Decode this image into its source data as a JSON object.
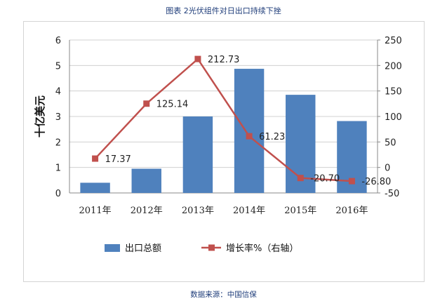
{
  "title": "图表 2光伏组件对日出口持续下挫",
  "source": "数据来源：中国信保",
  "chart_data": {
    "type": "bar",
    "categories": [
      "2011年",
      "2012年",
      "2013年",
      "2014年",
      "2015年",
      "2016年"
    ],
    "series": [
      {
        "name": "出口总额",
        "type": "bar",
        "axis": "left",
        "color": "#4f81bd",
        "values": [
          0.4,
          0.95,
          3.0,
          4.87,
          3.85,
          2.82
        ]
      },
      {
        "name": "增长率%（右轴）",
        "type": "line",
        "axis": "right",
        "color": "#c0504d",
        "values": [
          17.37,
          125.14,
          212.73,
          61.23,
          -20.7,
          -26.8
        ]
      }
    ],
    "data_labels": [
      "17.37",
      "125.14",
      "212.73",
      "61.23",
      "-20.70",
      "-26.80"
    ],
    "ylabel": "十亿美元",
    "ylim": [
      0,
      6
    ],
    "y_ticks": [
      "0",
      "1",
      "2",
      "3",
      "4",
      "5",
      "6"
    ],
    "y2lim": [
      -50,
      250
    ],
    "y2_ticks": [
      "-50",
      "0",
      "50",
      "100",
      "150",
      "200",
      "250"
    ],
    "grid": true,
    "legend_position": "bottom"
  }
}
